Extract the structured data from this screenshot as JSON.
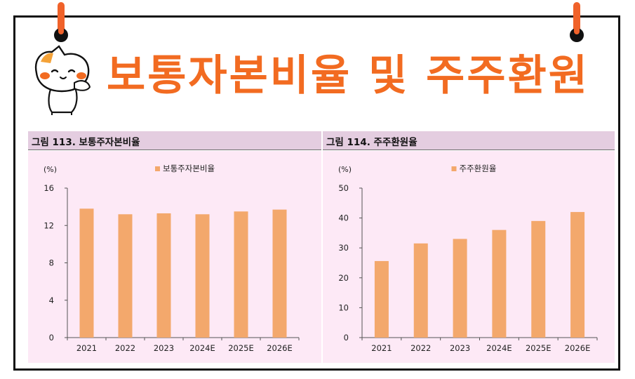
{
  "page": {
    "title": "보통자본비율 및 주주환원"
  },
  "colors": {
    "title": "#f26b21",
    "bar": "#f3a86c",
    "panel_header": "#e4cde0",
    "panel_background": "#fde9f6"
  },
  "icons": {
    "mascot": "cat-mascot-icon",
    "pins": "binder-pin-icon"
  },
  "chart_data": [
    {
      "type": "bar",
      "title": "그림 113. 보통주자본비율",
      "ylabel": "(%)",
      "legend": "보통주자본비율",
      "legend_position": "top-center",
      "grid": false,
      "categories": [
        "2021",
        "2022",
        "2023",
        "2024E",
        "2025E",
        "2026E"
      ],
      "series": [
        {
          "name": "보통주자본비율",
          "values": [
            13.8,
            13.2,
            13.3,
            13.2,
            13.5,
            13.7
          ]
        }
      ],
      "ylim": [
        0,
        16
      ],
      "yticks": [
        0,
        4,
        8,
        12,
        16
      ]
    },
    {
      "type": "bar",
      "title": "그림 114. 주주환원율",
      "ylabel": "(%)",
      "legend": "주주환원율",
      "legend_position": "top-center",
      "grid": false,
      "categories": [
        "2021",
        "2022",
        "2023",
        "2024E",
        "2025E",
        "2026E"
      ],
      "series": [
        {
          "name": "주주환원율",
          "values": [
            25.6,
            31.5,
            33.0,
            36.0,
            39.0,
            42.0
          ]
        }
      ],
      "ylim": [
        0,
        50
      ],
      "yticks": [
        0,
        10,
        20,
        30,
        40,
        50
      ]
    }
  ]
}
